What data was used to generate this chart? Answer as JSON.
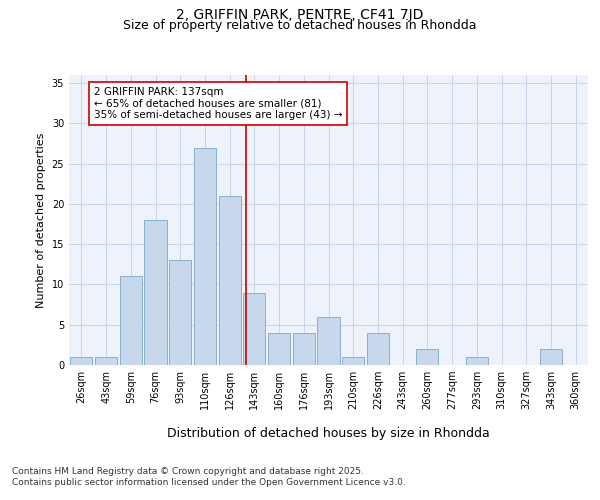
{
  "title": "2, GRIFFIN PARK, PENTRE, CF41 7JD",
  "subtitle": "Size of property relative to detached houses in Rhondda",
  "xlabel": "Distribution of detached houses by size in Rhondda",
  "ylabel": "Number of detached properties",
  "categories": [
    "26sqm",
    "43sqm",
    "59sqm",
    "76sqm",
    "93sqm",
    "110sqm",
    "126sqm",
    "143sqm",
    "160sqm",
    "176sqm",
    "193sqm",
    "210sqm",
    "226sqm",
    "243sqm",
    "260sqm",
    "277sqm",
    "293sqm",
    "310sqm",
    "327sqm",
    "343sqm",
    "360sqm"
  ],
  "values": [
    1,
    1,
    11,
    18,
    13,
    27,
    21,
    9,
    4,
    4,
    6,
    1,
    4,
    0,
    2,
    0,
    1,
    0,
    0,
    2,
    0
  ],
  "bar_color": "#c8d8ec",
  "bar_edge_color": "#8ab0cc",
  "grid_color": "#c8d4e8",
  "background_color": "#eef2fa",
  "marker_line_color": "#cc0000",
  "annotation_text": "2 GRIFFIN PARK: 137sqm\n← 65% of detached houses are smaller (81)\n35% of semi-detached houses are larger (43) →",
  "annotation_box_color": "#ffffff",
  "annotation_box_edge": "#cc0000",
  "ylim": [
    0,
    36
  ],
  "yticks": [
    0,
    5,
    10,
    15,
    20,
    25,
    30,
    35
  ],
  "footer_text": "Contains HM Land Registry data © Crown copyright and database right 2025.\nContains public sector information licensed under the Open Government Licence v3.0.",
  "title_fontsize": 10,
  "subtitle_fontsize": 9,
  "xlabel_fontsize": 9,
  "ylabel_fontsize": 8,
  "tick_fontsize": 7,
  "annotation_fontsize": 7.5,
  "footer_fontsize": 6.5
}
